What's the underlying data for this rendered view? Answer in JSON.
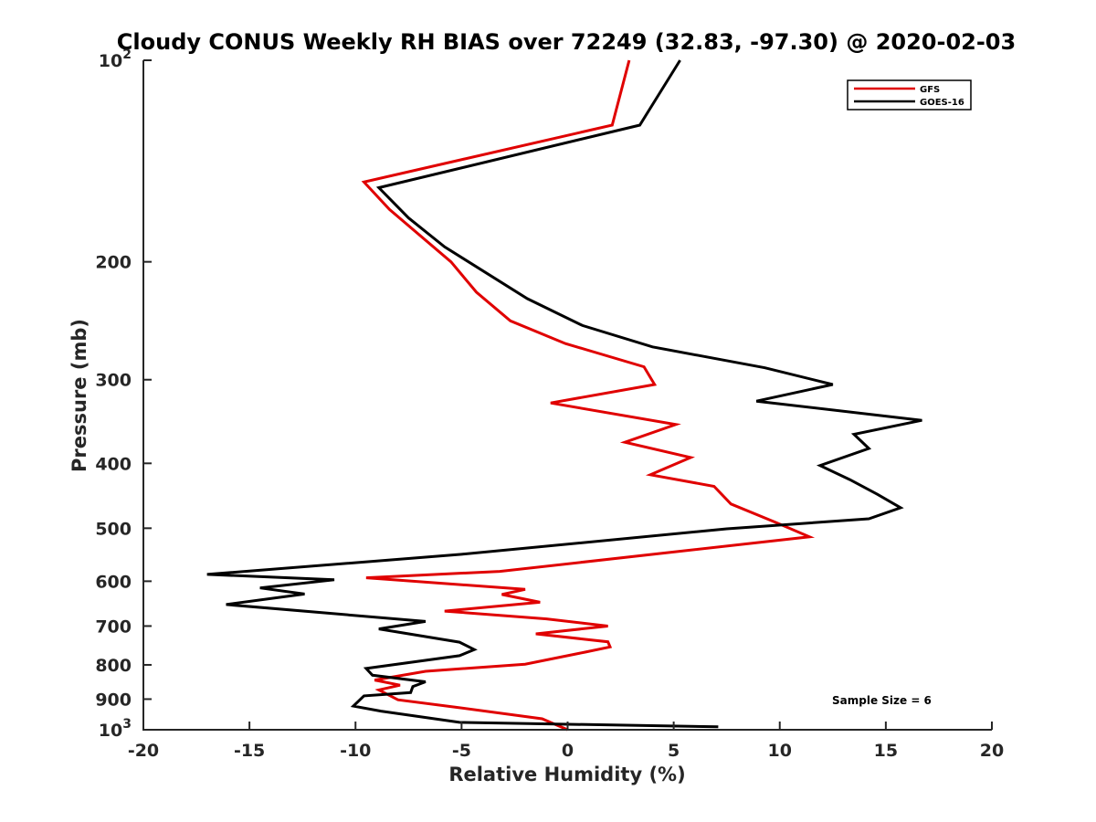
{
  "chart_data": {
    "type": "line",
    "title": "Cloudy CONUS Weekly RH BIAS over 72249 (32.83, -97.30) @ 2020-02-03",
    "xlabel": "Relative Humidity (%)",
    "ylabel": "Pressure (mb)",
    "xlim": [
      -20,
      20
    ],
    "ylim": [
      100,
      1000
    ],
    "y_scale": "log",
    "y_reversed": true,
    "x_ticks": [
      "-20",
      "-15",
      "-10",
      "-5",
      "0",
      "5",
      "10",
      "15",
      "20"
    ],
    "y_ticks": [
      {
        "value": 100,
        "base": "10",
        "exp": "2"
      },
      {
        "value": 200,
        "label": "200"
      },
      {
        "value": 300,
        "label": "300"
      },
      {
        "value": 400,
        "label": "400"
      },
      {
        "value": 500,
        "label": "500"
      },
      {
        "value": 600,
        "label": "600"
      },
      {
        "value": 700,
        "label": "700"
      },
      {
        "value": 800,
        "label": "800"
      },
      {
        "value": 900,
        "label": "900"
      },
      {
        "value": 1000,
        "base": "10",
        "exp": "3"
      }
    ],
    "grid": false,
    "legend_position": "top-right",
    "series": [
      {
        "name": "GFS",
        "color": "#e00000",
        "points": [
          [
            2.9,
            100
          ],
          [
            2.1,
            125
          ],
          [
            -9.6,
            152
          ],
          [
            -8.4,
            167
          ],
          [
            -5.5,
            200
          ],
          [
            -4.3,
            222
          ],
          [
            -2.7,
            245
          ],
          [
            -0.1,
            265
          ],
          [
            3.6,
            287
          ],
          [
            4.1,
            305
          ],
          [
            -0.8,
            325
          ],
          [
            5.1,
            350
          ],
          [
            2.7,
            372
          ],
          [
            5.8,
            392
          ],
          [
            3.9,
            416
          ],
          [
            6.9,
            433
          ],
          [
            7.7,
            460
          ],
          [
            9.8,
            490
          ],
          [
            11.4,
            515
          ],
          [
            -3.2,
            580
          ],
          [
            -9.5,
            593
          ],
          [
            -2.0,
            617
          ],
          [
            -3.1,
            628
          ],
          [
            -1.3,
            645
          ],
          [
            -5.8,
            665
          ],
          [
            -1.0,
            683
          ],
          [
            1.9,
            700
          ],
          [
            -1.5,
            719
          ],
          [
            1.9,
            739
          ],
          [
            2.0,
            752
          ],
          [
            0.8,
            766
          ],
          [
            -2.0,
            798
          ],
          [
            -6.7,
            818
          ],
          [
            -9.1,
            843
          ],
          [
            -7.9,
            858
          ],
          [
            -8.9,
            872
          ],
          [
            -8.0,
            902
          ],
          [
            -5.3,
            925
          ],
          [
            -1.2,
            963
          ],
          [
            0.0,
            1000
          ]
        ]
      },
      {
        "name": "GOES-16",
        "color": "#000000",
        "points": [
          [
            5.3,
            100
          ],
          [
            3.4,
            125
          ],
          [
            -8.9,
            155
          ],
          [
            -7.5,
            172
          ],
          [
            -5.8,
            190
          ],
          [
            -1.9,
            227
          ],
          [
            0.7,
            249
          ],
          [
            4.0,
            268
          ],
          [
            9.3,
            288
          ],
          [
            12.5,
            305
          ],
          [
            8.9,
            323
          ],
          [
            16.7,
            345
          ],
          [
            13.5,
            362
          ],
          [
            14.2,
            380
          ],
          [
            11.9,
            403
          ],
          [
            13.3,
            423
          ],
          [
            14.6,
            445
          ],
          [
            15.7,
            466
          ],
          [
            14.2,
            484
          ],
          [
            7.5,
            501
          ],
          [
            -5.0,
            547
          ],
          [
            -17.0,
            586
          ],
          [
            -11.0,
            597
          ],
          [
            -14.5,
            614
          ],
          [
            -12.4,
            627
          ],
          [
            -16.1,
            650
          ],
          [
            -6.7,
            689
          ],
          [
            -8.9,
            707
          ],
          [
            -5.1,
            740
          ],
          [
            -4.4,
            759
          ],
          [
            -5.1,
            775
          ],
          [
            -9.5,
            810
          ],
          [
            -9.2,
            829
          ],
          [
            -6.7,
            848
          ],
          [
            -7.3,
            862
          ],
          [
            -7.4,
            880
          ],
          [
            -9.6,
            890
          ],
          [
            -10.1,
            922
          ],
          [
            -8.8,
            938
          ],
          [
            -5.1,
            975
          ],
          [
            7.1,
            990
          ]
        ]
      }
    ],
    "annotations": [
      "Sample Size = 6"
    ]
  }
}
